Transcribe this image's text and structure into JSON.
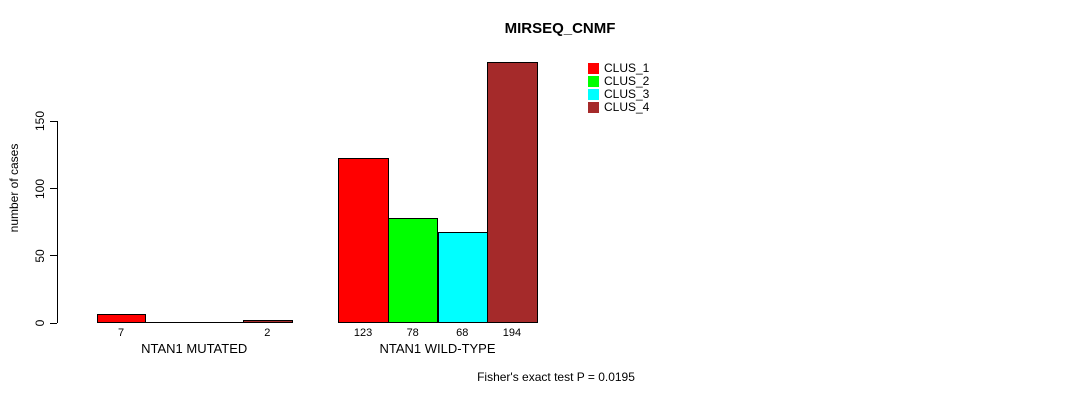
{
  "chart_data": {
    "type": "bar",
    "title": "MIRSEQ_CNMF",
    "xlabel": "",
    "ylabel": "number of cases",
    "ylim": [
      0,
      150
    ],
    "yticks": [
      0,
      50,
      100,
      150
    ],
    "grid": false,
    "legend_position": "top-right",
    "categories": [
      "NTAN1 MUTATED",
      "NTAN1 WILD-TYPE"
    ],
    "series": [
      {
        "name": "CLUS_1",
        "color": "#FF0000",
        "values": [
          7,
          123
        ]
      },
      {
        "name": "CLUS_2",
        "color": "#00FF00",
        "values": [
          0,
          78
        ]
      },
      {
        "name": "CLUS_3",
        "color": "#00FFFF",
        "values": [
          0,
          68
        ]
      },
      {
        "name": "CLUS_4",
        "color": "#A52A2A",
        "values": [
          2,
          194
        ]
      }
    ],
    "bar_value_labels": [
      [
        "7",
        "123"
      ],
      [
        "",
        "78"
      ],
      [
        "",
        "68"
      ],
      [
        "2",
        "194"
      ]
    ],
    "annotation": "Fisher's exact test P = 0.0195"
  }
}
